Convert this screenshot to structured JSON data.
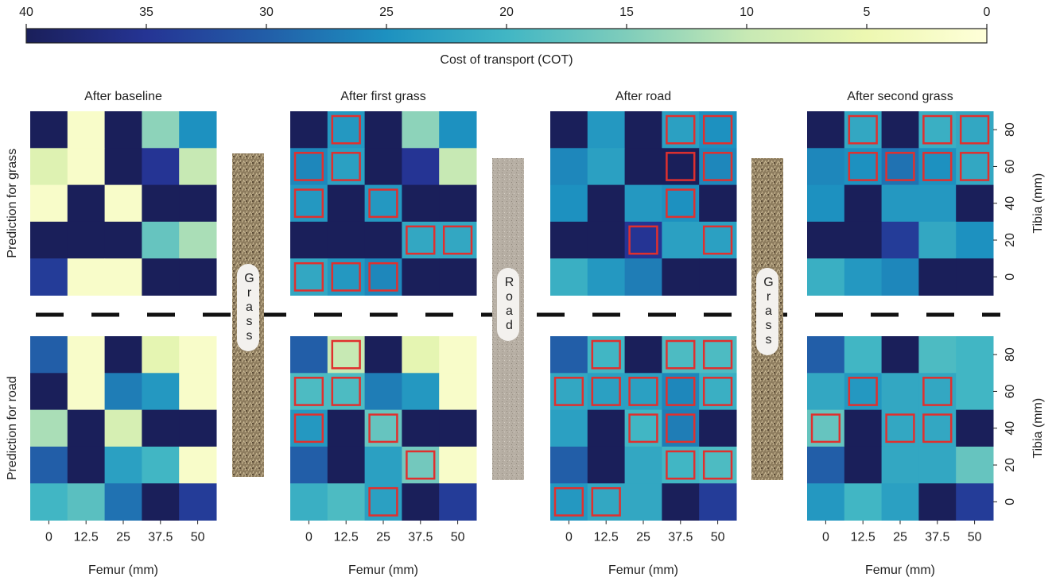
{
  "chart_data": {
    "type": "heatmap",
    "colorbar": {
      "label": "Cost of transport (COT)",
      "lim": [
        40,
        0
      ],
      "ticks": [
        40,
        35,
        30,
        25,
        20,
        15,
        10,
        5,
        0
      ]
    },
    "colormap": [
      "#ffffd9",
      "#edf8b1",
      "#c7e9b4",
      "#7fcdbb",
      "#41b6c4",
      "#1d91c0",
      "#225ea8",
      "#253494",
      "#1a1f5a"
    ],
    "highlight_color": "#e0302e",
    "x_label": "Femur (mm)",
    "y_label": "Tibia (mm)",
    "x": [
      0,
      12.5,
      25,
      37.5,
      50
    ],
    "y": [
      80,
      60,
      40,
      20,
      0
    ],
    "columns": [
      {
        "title": "After baseline"
      },
      {
        "title": "After first grass"
      },
      {
        "title": "After road"
      },
      {
        "title": "After second grass"
      }
    ],
    "surfaces": [
      "Grass",
      "Road",
      "Grass"
    ],
    "rows": [
      {
        "label": "Prediction for grass",
        "panels": [
          {
            "values": [
              [
                40,
                2,
                40,
                14,
                25
              ],
              [
                7,
                2,
                40,
                35,
                10
              ],
              [
                2,
                40,
                2,
                40,
                40
              ],
              [
                40,
                40,
                40,
                17,
                12
              ],
              [
                34,
                2,
                2,
                40,
                40
              ]
            ],
            "highlighted": [
              [
                false,
                false,
                false,
                false,
                false
              ],
              [
                false,
                false,
                false,
                false,
                false
              ],
              [
                false,
                false,
                false,
                false,
                false
              ],
              [
                false,
                false,
                false,
                false,
                false
              ],
              [
                false,
                false,
                false,
                false,
                false
              ]
            ]
          },
          {
            "values": [
              [
                40,
                24,
                40,
                14,
                25
              ],
              [
                26,
                23,
                40,
                35,
                10
              ],
              [
                24,
                40,
                24,
                40,
                40
              ],
              [
                40,
                40,
                40,
                22,
                22
              ],
              [
                22,
                24,
                26,
                40,
                40
              ]
            ],
            "highlighted": [
              [
                false,
                true,
                false,
                false,
                false
              ],
              [
                true,
                true,
                false,
                false,
                false
              ],
              [
                true,
                false,
                true,
                false,
                false
              ],
              [
                false,
                false,
                false,
                true,
                true
              ],
              [
                true,
                true,
                true,
                false,
                false
              ]
            ]
          },
          {
            "values": [
              [
                40,
                24,
                40,
                23,
                25
              ],
              [
                26,
                23,
                40,
                40,
                26
              ],
              [
                25,
                40,
                24,
                25,
                40
              ],
              [
                40,
                40,
                35,
                23,
                23
              ],
              [
                21,
                24,
                27,
                40,
                40
              ]
            ],
            "highlighted": [
              [
                false,
                false,
                false,
                true,
                true
              ],
              [
                false,
                false,
                false,
                true,
                true
              ],
              [
                false,
                false,
                false,
                true,
                false
              ],
              [
                false,
                false,
                true,
                false,
                true
              ],
              [
                false,
                false,
                false,
                false,
                false
              ]
            ]
          },
          {
            "values": [
              [
                40,
                22,
                40,
                21,
                22
              ],
              [
                26,
                25,
                28,
                25,
                22
              ],
              [
                25,
                40,
                24,
                24,
                40
              ],
              [
                40,
                40,
                34,
                22,
                25
              ],
              [
                21,
                24,
                26,
                40,
                40
              ]
            ],
            "highlighted": [
              [
                false,
                true,
                false,
                true,
                true
              ],
              [
                false,
                true,
                true,
                true,
                true
              ],
              [
                false,
                false,
                false,
                false,
                false
              ],
              [
                false,
                false,
                false,
                false,
                false
              ],
              [
                false,
                false,
                false,
                false,
                false
              ]
            ]
          }
        ]
      },
      {
        "label": "Prediction for road",
        "panels": [
          {
            "values": [
              [
                30,
                2,
                40,
                6,
                2
              ],
              [
                40,
                2,
                27,
                24,
                2
              ],
              [
                12,
                40,
                8,
                40,
                40
              ],
              [
                30,
                40,
                23,
                20,
                2
              ],
              [
                20,
                18,
                28,
                40,
                34
              ]
            ],
            "highlighted": [
              [
                false,
                false,
                false,
                false,
                false
              ],
              [
                false,
                false,
                false,
                false,
                false
              ],
              [
                false,
                false,
                false,
                false,
                false
              ],
              [
                false,
                false,
                false,
                false,
                false
              ],
              [
                false,
                false,
                false,
                false,
                false
              ]
            ]
          },
          {
            "values": [
              [
                30,
                10,
                40,
                6,
                2
              ],
              [
                19,
                19,
                27,
                24,
                2
              ],
              [
                24,
                40,
                17,
                40,
                40
              ],
              [
                30,
                40,
                23,
                16,
                2
              ],
              [
                21,
                19,
                23,
                40,
                34
              ]
            ],
            "highlighted": [
              [
                false,
                true,
                false,
                false,
                false
              ],
              [
                true,
                true,
                false,
                false,
                false
              ],
              [
                true,
                false,
                true,
                false,
                false
              ],
              [
                false,
                false,
                false,
                true,
                false
              ],
              [
                false,
                false,
                true,
                false,
                false
              ]
            ]
          },
          {
            "values": [
              [
                30,
                20,
                40,
                19,
                19
              ],
              [
                22,
                23,
                23,
                26,
                21
              ],
              [
                23,
                40,
                20,
                27,
                40
              ],
              [
                30,
                40,
                22,
                20,
                19
              ],
              [
                24,
                22,
                22,
                40,
                34
              ]
            ],
            "highlighted": [
              [
                false,
                true,
                false,
                true,
                true
              ],
              [
                true,
                true,
                true,
                true,
                true
              ],
              [
                false,
                false,
                true,
                true,
                false
              ],
              [
                false,
                false,
                false,
                true,
                true
              ],
              [
                true,
                true,
                false,
                false,
                false
              ]
            ]
          },
          {
            "values": [
              [
                30,
                20,
                40,
                19,
                20
              ],
              [
                22,
                24,
                22,
                22,
                20
              ],
              [
                17,
                40,
                22,
                22,
                40
              ],
              [
                30,
                40,
                22,
                22,
                17
              ],
              [
                24,
                20,
                23,
                40,
                34
              ]
            ],
            "highlighted": [
              [
                false,
                false,
                false,
                false,
                false
              ],
              [
                false,
                true,
                false,
                true,
                false
              ],
              [
                true,
                false,
                true,
                true,
                false
              ],
              [
                false,
                false,
                false,
                false,
                false
              ],
              [
                false,
                false,
                false,
                false,
                false
              ]
            ]
          }
        ]
      }
    ]
  }
}
